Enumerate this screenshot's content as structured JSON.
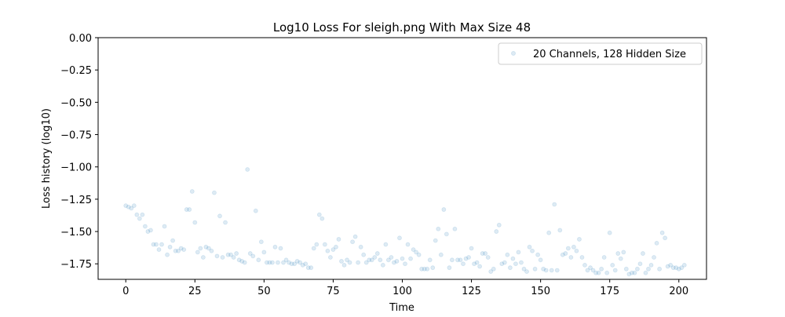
{
  "chart_data": {
    "type": "scatter",
    "title": "Log10 Loss For sleigh.png With Max Size 48",
    "xlabel": "Time",
    "ylabel": "Loss history (log10)",
    "xlim": [
      -10,
      210
    ],
    "ylim": [
      -1.87,
      0.0
    ],
    "xticks": [
      0,
      25,
      50,
      75,
      100,
      125,
      150,
      175,
      200
    ],
    "yticks": [
      0.0,
      -0.25,
      -0.5,
      -0.75,
      -1.0,
      -1.25,
      -1.5,
      -1.75
    ],
    "xtick_labels": [
      "0",
      "25",
      "50",
      "75",
      "100",
      "125",
      "150",
      "175",
      "200"
    ],
    "ytick_labels": [
      "0.00",
      "−0.25",
      "−0.50",
      "−0.75",
      "−1.00",
      "−1.25",
      "−1.50",
      "−1.75"
    ],
    "grid": false,
    "legend_position": "top-right",
    "series": [
      {
        "name": "20 Channels, 128 Hidden Size",
        "color": "#1f77b4",
        "alpha": 0.15,
        "marker": "circle",
        "y": [
          -1.3,
          -1.31,
          -1.32,
          -1.3,
          -1.37,
          -1.4,
          -1.37,
          -1.46,
          -1.5,
          -1.49,
          -1.6,
          -1.6,
          -1.64,
          -1.6,
          -1.46,
          -1.68,
          -1.62,
          -1.57,
          -1.65,
          -1.65,
          -1.63,
          -1.64,
          -1.33,
          -1.33,
          -1.19,
          -1.43,
          -1.66,
          -1.63,
          -1.7,
          -1.62,
          -1.63,
          -1.65,
          -1.2,
          -1.69,
          -1.38,
          -1.7,
          -1.43,
          -1.68,
          -1.68,
          -1.7,
          -1.67,
          -1.72,
          -1.73,
          -1.74,
          -1.02,
          -1.67,
          -1.69,
          -1.34,
          -1.72,
          -1.58,
          -1.66,
          -1.74,
          -1.74,
          -1.74,
          -1.62,
          -1.74,
          -1.63,
          -1.74,
          -1.72,
          -1.74,
          -1.75,
          -1.75,
          -1.73,
          -1.74,
          -1.76,
          -1.75,
          -1.78,
          -1.78,
          -1.63,
          -1.6,
          -1.37,
          -1.4,
          -1.6,
          -1.65,
          -1.7,
          -1.64,
          -1.62,
          -1.56,
          -1.73,
          -1.76,
          -1.72,
          -1.74,
          -1.58,
          -1.54,
          -1.74,
          -1.62,
          -1.68,
          -1.74,
          -1.72,
          -1.72,
          -1.7,
          -1.67,
          -1.72,
          -1.76,
          -1.6,
          -1.72,
          -1.7,
          -1.74,
          -1.73,
          -1.55,
          -1.71,
          -1.75,
          -1.6,
          -1.71,
          -1.64,
          -1.66,
          -1.68,
          -1.79,
          -1.79,
          -1.79,
          -1.72,
          -1.78,
          -1.57,
          -1.48,
          -1.68,
          -1.33,
          -1.52,
          -1.78,
          -1.72,
          -1.48,
          -1.72,
          -1.72,
          -1.75,
          -1.71,
          -1.7,
          -1.63,
          -1.75,
          -1.74,
          -1.77,
          -1.67,
          -1.67,
          -1.7,
          -1.81,
          -1.79,
          -1.5,
          -1.45,
          -1.75,
          -1.74,
          -1.68,
          -1.78,
          -1.71,
          -1.75,
          -1.66,
          -1.74,
          -1.79,
          -1.81,
          -1.62,
          -1.65,
          -1.79,
          -1.68,
          -1.72,
          -1.79,
          -1.8,
          -1.51,
          -1.8,
          -1.29,
          -1.8,
          -1.49,
          -1.68,
          -1.67,
          -1.63,
          -1.7,
          -1.62,
          -1.65,
          -1.56,
          -1.7,
          -1.76,
          -1.8,
          -1.78,
          -1.8,
          -1.82,
          -1.82,
          -1.79,
          -1.7,
          -1.82,
          -1.51,
          -1.76,
          -1.8,
          -1.67,
          -1.71,
          -1.66,
          -1.79,
          -1.83,
          -1.82,
          -1.82,
          -1.79,
          -1.75,
          -1.67,
          -1.82,
          -1.79,
          -1.76,
          -1.7,
          -1.59,
          -1.79,
          -1.51,
          -1.55,
          -1.77,
          -1.76,
          -1.78,
          -1.78,
          -1.79,
          -1.78,
          -1.76
        ]
      }
    ]
  }
}
